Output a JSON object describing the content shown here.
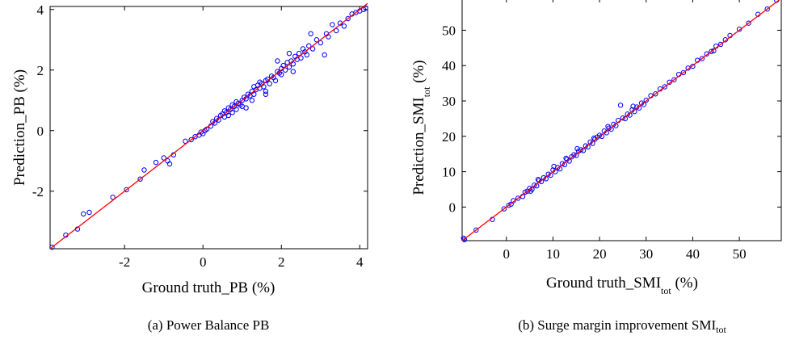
{
  "chart_data": [
    {
      "type": "scatter",
      "xlabel": "Ground truth_PB (%)",
      "ylabel": "Prediction_PB (%)",
      "caption": "(a)  Power Balance PB",
      "xlim": [
        -3.9,
        4.2
      ],
      "ylim": [
        -3.9,
        4.1
      ],
      "xticks": [
        -2,
        0,
        2,
        4
      ],
      "yticks": [
        -2,
        0,
        2,
        4
      ],
      "tick_labels_x": [
        "-2",
        "0",
        "2",
        "4"
      ],
      "tick_labels_y": [
        "-2",
        "0",
        "2",
        "4"
      ],
      "marker_color": "#0000ff",
      "line_color": "#ff0000",
      "reference_line": [
        [
          -3.9,
          -3.9
        ],
        [
          4.2,
          4.2
        ]
      ],
      "points": [
        [
          -3.85,
          -3.85
        ],
        [
          -3.5,
          -3.45
        ],
        [
          -3.2,
          -3.25
        ],
        [
          -3.05,
          -2.75
        ],
        [
          -2.9,
          -2.7
        ],
        [
          -2.3,
          -2.2
        ],
        [
          -1.95,
          -1.95
        ],
        [
          -1.6,
          -1.6
        ],
        [
          -1.5,
          -1.3
        ],
        [
          -1.2,
          -1.05
        ],
        [
          -1.0,
          -0.9
        ],
        [
          -0.9,
          -1.0
        ],
        [
          -0.85,
          -1.1
        ],
        [
          -0.75,
          -0.8
        ],
        [
          -0.45,
          -0.35
        ],
        [
          -0.3,
          -0.3
        ],
        [
          -0.2,
          -0.2
        ],
        [
          -0.1,
          -0.15
        ],
        [
          -0.05,
          -0.05
        ],
        [
          0.0,
          -0.1
        ],
        [
          0.05,
          0.0
        ],
        [
          0.1,
          0.05
        ],
        [
          0.2,
          0.15
        ],
        [
          0.25,
          0.3
        ],
        [
          0.3,
          0.25
        ],
        [
          0.35,
          0.4
        ],
        [
          0.4,
          0.35
        ],
        [
          0.45,
          0.5
        ],
        [
          0.5,
          0.55
        ],
        [
          0.55,
          0.45
        ],
        [
          0.55,
          0.65
        ],
        [
          0.6,
          0.6
        ],
        [
          0.65,
          0.5
        ],
        [
          0.65,
          0.75
        ],
        [
          0.7,
          0.7
        ],
        [
          0.75,
          0.6
        ],
        [
          0.75,
          0.85
        ],
        [
          0.8,
          0.8
        ],
        [
          0.85,
          0.7
        ],
        [
          0.85,
          0.95
        ],
        [
          0.9,
          0.9
        ],
        [
          0.95,
          0.85
        ],
        [
          1.0,
          1.0
        ],
        [
          1.0,
          0.8
        ],
        [
          1.05,
          1.1
        ],
        [
          1.1,
          1.05
        ],
        [
          1.1,
          0.75
        ],
        [
          1.15,
          1.2
        ],
        [
          1.2,
          1.15
        ],
        [
          1.25,
          1.3
        ],
        [
          1.3,
          1.2
        ],
        [
          1.3,
          1.45
        ],
        [
          1.35,
          1.35
        ],
        [
          1.4,
          1.5
        ],
        [
          1.45,
          1.4
        ],
        [
          1.45,
          1.6
        ],
        [
          1.5,
          1.55
        ],
        [
          1.55,
          1.45
        ],
        [
          1.6,
          1.65
        ],
        [
          1.6,
          1.3
        ],
        [
          1.65,
          1.7
        ],
        [
          1.7,
          1.55
        ],
        [
          1.75,
          1.8
        ],
        [
          1.8,
          1.75
        ],
        [
          1.85,
          1.65
        ],
        [
          1.9,
          1.95
        ],
        [
          1.95,
          1.9
        ],
        [
          2.0,
          2.05
        ],
        [
          2.0,
          1.85
        ],
        [
          2.05,
          2.15
        ],
        [
          2.1,
          2.0
        ],
        [
          2.15,
          2.25
        ],
        [
          2.2,
          2.1
        ],
        [
          2.25,
          2.3
        ],
        [
          2.3,
          2.2
        ],
        [
          2.3,
          1.95
        ],
        [
          2.35,
          2.45
        ],
        [
          2.4,
          2.35
        ],
        [
          2.45,
          2.55
        ],
        [
          2.5,
          2.4
        ],
        [
          2.55,
          2.7
        ],
        [
          2.6,
          2.6
        ],
        [
          2.65,
          2.5
        ],
        [
          2.7,
          2.8
        ],
        [
          2.75,
          3.2
        ],
        [
          2.8,
          2.7
        ],
        [
          2.9,
          3.0
        ],
        [
          3.0,
          2.9
        ],
        [
          3.1,
          2.5
        ],
        [
          3.15,
          3.2
        ],
        [
          3.2,
          3.1
        ],
        [
          3.3,
          3.5
        ],
        [
          3.4,
          3.3
        ],
        [
          3.5,
          3.55
        ],
        [
          3.6,
          3.45
        ],
        [
          3.7,
          3.7
        ],
        [
          3.8,
          3.85
        ],
        [
          3.9,
          3.9
        ],
        [
          4.0,
          3.95
        ],
        [
          4.1,
          4.0
        ],
        [
          4.15,
          4.05
        ],
        [
          1.9,
          2.3
        ],
        [
          2.2,
          2.55
        ],
        [
          1.6,
          1.2
        ],
        [
          1.25,
          1.0
        ]
      ]
    },
    {
      "type": "scatter",
      "xlabel_main": "Ground truth_SMI",
      "xlabel_sub": "tot",
      "xlabel_unit": " (%)",
      "ylabel_main": "Prediction_SMI",
      "ylabel_sub": "tot",
      "ylabel_unit": " (%)",
      "caption_main": "(b)  Surge margin improvement SMI",
      "caption_sub": "tot",
      "xlim": [
        -9.5,
        59
      ],
      "ylim": [
        -9.5,
        59
      ],
      "xticks": [
        0,
        10,
        20,
        30,
        40,
        50
      ],
      "yticks": [
        0,
        10,
        20,
        30,
        40,
        50
      ],
      "tick_labels_x": [
        "0",
        "10",
        "20",
        "30",
        "40",
        "50"
      ],
      "tick_labels_y": [
        "0",
        "10",
        "20",
        "30",
        "40",
        "50"
      ],
      "marker_color": "#0000ff",
      "line_color": "#ff0000",
      "reference_line": [
        [
          -9.5,
          -9.5
        ],
        [
          59,
          59
        ]
      ],
      "points": [
        [
          -9.2,
          -8.8
        ],
        [
          -9.0,
          -9.2
        ],
        [
          -6.5,
          -6.5
        ],
        [
          -3.0,
          -3.5
        ],
        [
          -0.5,
          -0.5
        ],
        [
          0.5,
          0.5
        ],
        [
          1.0,
          0.8
        ],
        [
          1.5,
          1.8
        ],
        [
          2.5,
          2.5
        ],
        [
          3.5,
          3.0
        ],
        [
          4.0,
          4.2
        ],
        [
          4.5,
          4.5
        ],
        [
          5.0,
          5.3
        ],
        [
          5.5,
          5.0
        ],
        [
          6.0,
          6.2
        ],
        [
          6.5,
          6.0
        ],
        [
          7.0,
          7.5
        ],
        [
          7.5,
          7.2
        ],
        [
          8.0,
          8.3
        ],
        [
          8.5,
          8.0
        ],
        [
          9.0,
          9.3
        ],
        [
          9.5,
          9.0
        ],
        [
          10.0,
          10.5
        ],
        [
          10.5,
          10.0
        ],
        [
          11.0,
          11.2
        ],
        [
          11.5,
          10.8
        ],
        [
          12.0,
          12.3
        ],
        [
          12.5,
          12.0
        ],
        [
          13.0,
          13.5
        ],
        [
          13.5,
          13.0
        ],
        [
          14.0,
          14.2
        ],
        [
          14.5,
          14.8
        ],
        [
          15.0,
          14.6
        ],
        [
          15.5,
          15.8
        ],
        [
          16.0,
          16.2
        ],
        [
          16.5,
          16.0
        ],
        [
          17.0,
          17.3
        ],
        [
          17.5,
          17.0
        ],
        [
          18.0,
          18.4
        ],
        [
          18.5,
          18.0
        ],
        [
          19.0,
          19.2
        ],
        [
          19.5,
          19.8
        ],
        [
          20.0,
          20.3
        ],
        [
          20.5,
          20.0
        ],
        [
          21.0,
          21.5
        ],
        [
          21.5,
          21.0
        ],
        [
          22.0,
          22.3
        ],
        [
          22.5,
          22.0
        ],
        [
          23.0,
          23.4
        ],
        [
          23.5,
          23.0
        ],
        [
          24.0,
          24.5
        ],
        [
          24.5,
          28.8
        ],
        [
          25.0,
          25.2
        ],
        [
          25.5,
          25.0
        ],
        [
          26.0,
          26.3
        ],
        [
          26.5,
          26.0
        ],
        [
          27.0,
          27.5
        ],
        [
          27.5,
          27.0
        ],
        [
          28.0,
          28.3
        ],
        [
          28.5,
          28.0
        ],
        [
          29.0,
          29.4
        ],
        [
          29.5,
          29.0
        ],
        [
          30.0,
          30.2
        ],
        [
          31.0,
          31.5
        ],
        [
          32.0,
          32.0
        ],
        [
          33.0,
          33.4
        ],
        [
          34.0,
          34.0
        ],
        [
          35.0,
          35.3
        ],
        [
          36.0,
          36.0
        ],
        [
          37.0,
          37.5
        ],
        [
          38.0,
          38.0
        ],
        [
          39.0,
          39.3
        ],
        [
          40.0,
          39.8
        ],
        [
          41.0,
          41.5
        ],
        [
          42.0,
          42.0
        ],
        [
          43.0,
          43.3
        ],
        [
          44.0,
          44.0
        ],
        [
          45.0,
          45.5
        ],
        [
          46.0,
          46.0
        ],
        [
          47.0,
          47.3
        ],
        [
          48.0,
          48.5
        ],
        [
          50.0,
          50.3
        ],
        [
          52.0,
          52.0
        ],
        [
          54.0,
          54.5
        ],
        [
          56.0,
          56.0
        ],
        [
          58.0,
          58.5
        ],
        [
          5.2,
          4.5
        ],
        [
          6.8,
          7.8
        ],
        [
          10.2,
          11.5
        ],
        [
          12.8,
          13.8
        ],
        [
          15.2,
          16.5
        ],
        [
          18.8,
          19.5
        ],
        [
          21.8,
          22.8
        ],
        [
          27.2,
          28.5
        ],
        [
          44.5,
          44.2
        ]
      ]
    }
  ]
}
